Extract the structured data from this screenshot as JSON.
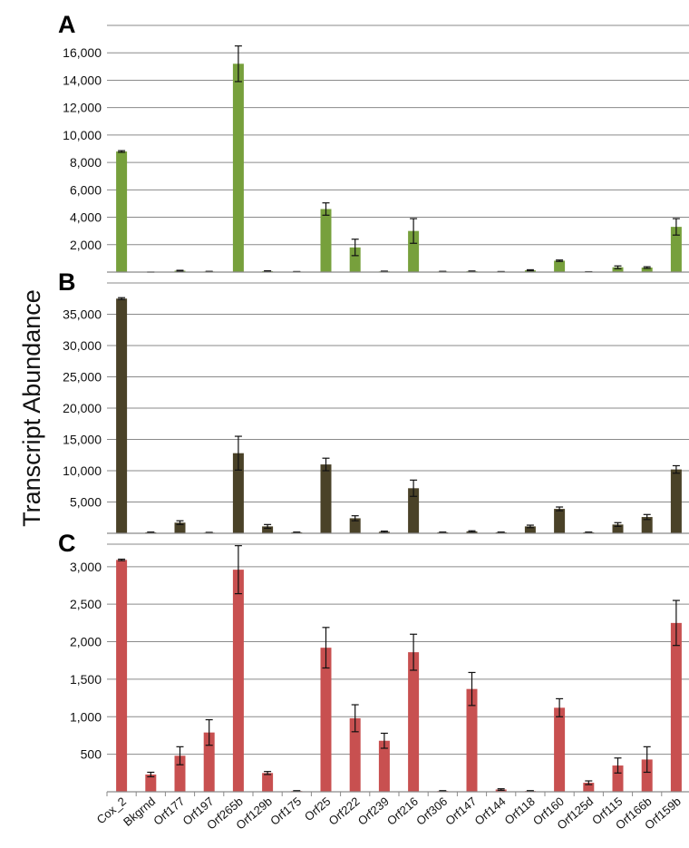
{
  "ylabel": "Transcript Abundance",
  "categories": [
    "Cox_2",
    "Bkgrnd",
    "Orf177",
    "Orf197",
    "Orf265b",
    "Orf129b",
    "Orf175",
    "Orf25",
    "Orf222",
    "Orf239",
    "Orf216",
    "Orf306",
    "Orf147",
    "Orf144",
    "Orf118",
    "Orf160",
    "Orf125d",
    "Orf115",
    "Orf166b",
    "Orf159b"
  ],
  "chart_data": [
    {
      "type": "bar",
      "panel_label": "A",
      "color": "#77a03c",
      "ylim": [
        0,
        18000
      ],
      "yticks": [
        2000,
        4000,
        6000,
        8000,
        10000,
        12000,
        14000,
        16000
      ],
      "ytick_labels": [
        "2,000",
        "4,000",
        "6,000",
        "8,000",
        "10,000",
        "12,000",
        "14,000",
        "16,000"
      ],
      "grid": true,
      "values": [
        8800,
        0,
        100,
        40,
        15200,
        70,
        30,
        4600,
        1800,
        50,
        3000,
        40,
        60,
        30,
        130,
        830,
        20,
        350,
        330,
        3300
      ],
      "errors": [
        60,
        0,
        30,
        15,
        1300,
        25,
        10,
        450,
        600,
        20,
        900,
        15,
        20,
        10,
        40,
        50,
        10,
        100,
        60,
        600
      ]
    },
    {
      "type": "bar",
      "panel_label": "B",
      "color": "#4a4228",
      "ylim": [
        0,
        40000
      ],
      "yticks": [
        5000,
        10000,
        15000,
        20000,
        25000,
        30000,
        35000
      ],
      "ytick_labels": [
        "5,000",
        "10,000",
        "15,000",
        "20,000",
        "25,000",
        "30,000",
        "35,000"
      ],
      "grid": true,
      "values": [
        37500,
        150,
        1700,
        100,
        12800,
        1100,
        150,
        11000,
        2400,
        250,
        7200,
        150,
        300,
        150,
        1100,
        3900,
        150,
        1400,
        2600,
        10200
      ],
      "errors": [
        150,
        50,
        300,
        50,
        2700,
        300,
        50,
        1000,
        400,
        100,
        1300,
        50,
        100,
        50,
        200,
        300,
        50,
        300,
        400,
        600
      ]
    },
    {
      "type": "bar",
      "panel_label": "C",
      "color": "#c85050",
      "ylim": [
        0,
        3300
      ],
      "yticks": [
        500,
        1000,
        1500,
        2000,
        2500,
        3000
      ],
      "ytick_labels": [
        "500",
        "1,000",
        "1,500",
        "2,000",
        "2,500",
        "3,000"
      ],
      "grid": true,
      "values": [
        3090,
        230,
        480,
        790,
        2960,
        250,
        10,
        1920,
        980,
        680,
        1860,
        10,
        1370,
        30,
        10,
        1120,
        120,
        350,
        430,
        2250
      ],
      "errors": [
        10,
        30,
        120,
        170,
        320,
        20,
        5,
        270,
        180,
        100,
        240,
        5,
        220,
        10,
        5,
        120,
        25,
        100,
        170,
        300
      ]
    }
  ]
}
